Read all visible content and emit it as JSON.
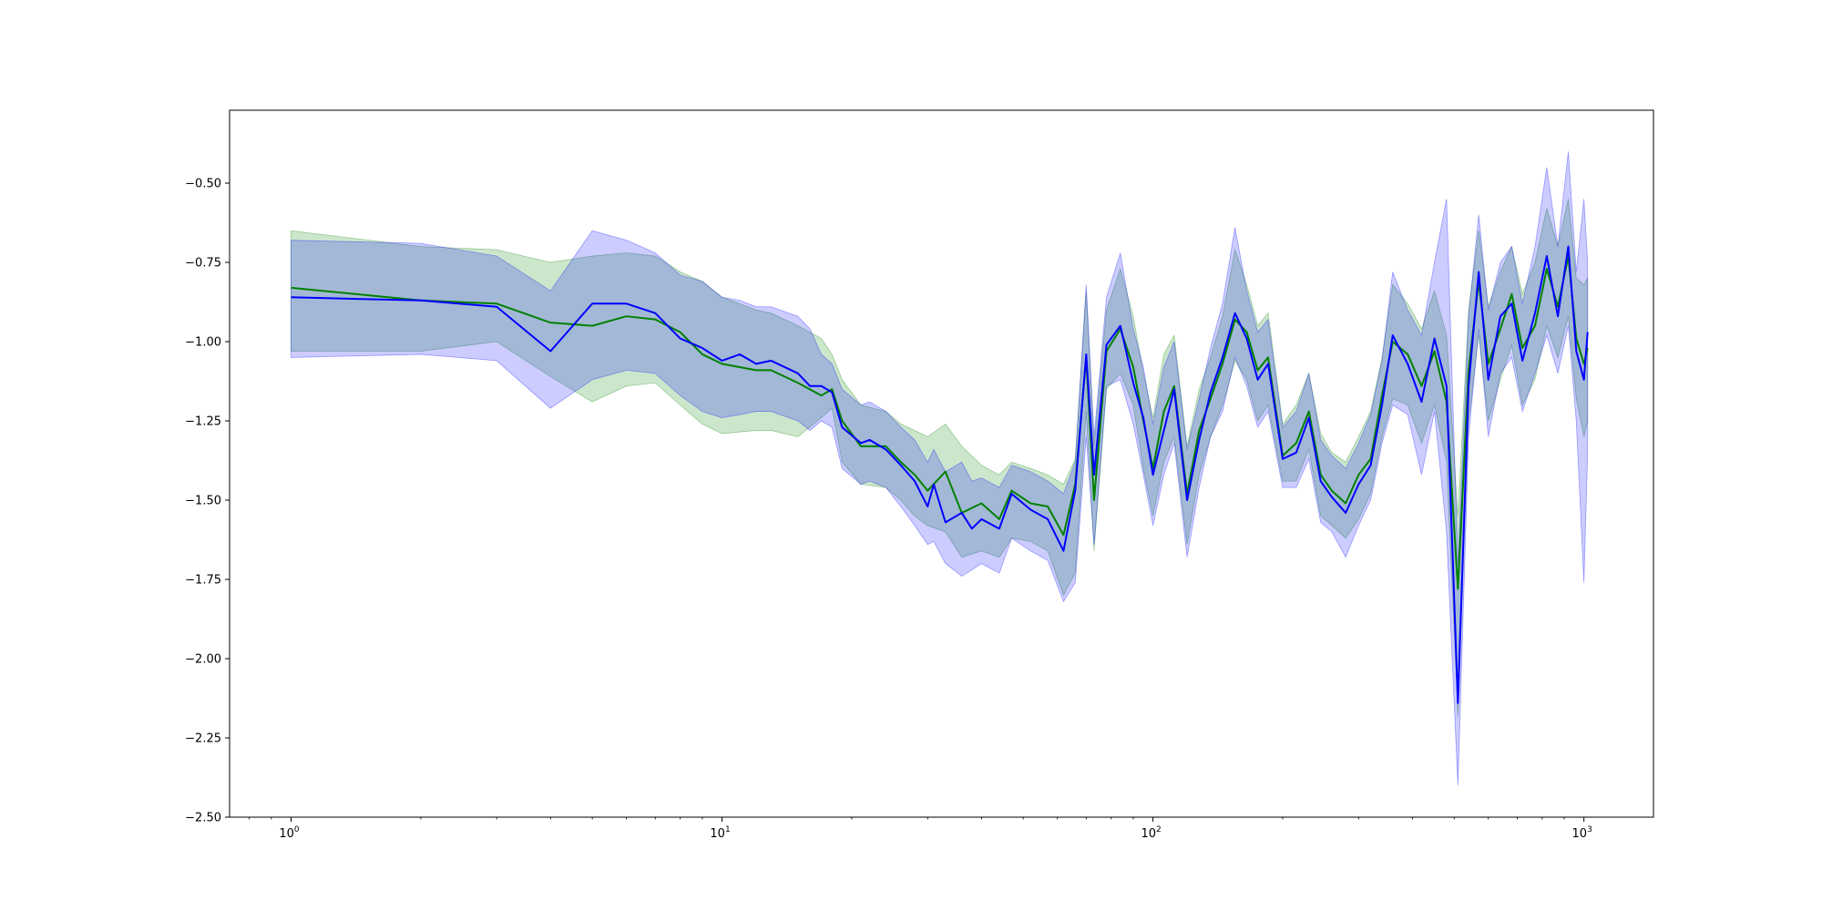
{
  "chart_data": {
    "type": "line",
    "title": "",
    "xlabel": "",
    "ylabel": "",
    "xscale": "log",
    "xlim": [
      0.72,
      1450
    ],
    "ylim": [
      -2.5,
      -0.27
    ],
    "grid": false,
    "x_ticks": [
      {
        "value": 1,
        "label": "10",
        "exp": "0"
      },
      {
        "value": 10,
        "label": "10",
        "exp": "1"
      },
      {
        "value": 100,
        "label": "10",
        "exp": "2"
      },
      {
        "value": 1000,
        "label": "10",
        "exp": "3"
      }
    ],
    "y_ticks": [
      {
        "value": -0.5,
        "label": "−0.50"
      },
      {
        "value": -0.75,
        "label": "−0.75"
      },
      {
        "value": -1.0,
        "label": "−1.00"
      },
      {
        "value": -1.25,
        "label": "−1.25"
      },
      {
        "value": -1.5,
        "label": "−1.50"
      },
      {
        "value": -1.75,
        "label": "−1.75"
      },
      {
        "value": -2.0,
        "label": "−2.00"
      },
      {
        "value": -2.25,
        "label": "−2.25"
      },
      {
        "value": -2.5,
        "label": "−2.50"
      }
    ],
    "series": [
      {
        "color": "#008000",
        "band_color": "#008000",
        "band_opacity": 0.2,
        "points": [
          [
            1,
            -0.83,
            -1.03,
            -0.65
          ],
          [
            2,
            -0.87,
            -1.03,
            -0.7
          ],
          [
            3,
            -0.88,
            -1.0,
            -0.71
          ],
          [
            4,
            -0.94,
            -1.11,
            -0.75
          ],
          [
            5,
            -0.95,
            -1.19,
            -0.73
          ],
          [
            6,
            -0.92,
            -1.14,
            -0.72
          ],
          [
            7,
            -0.93,
            -1.13,
            -0.73
          ],
          [
            8,
            -0.97,
            -1.2,
            -0.78
          ],
          [
            9,
            -1.04,
            -1.26,
            -0.81
          ],
          [
            10,
            -1.07,
            -1.29,
            -0.86
          ],
          [
            12,
            -1.09,
            -1.28,
            -0.9
          ],
          [
            13,
            -1.09,
            -1.28,
            -0.91
          ],
          [
            15,
            -1.13,
            -1.3,
            -0.95
          ],
          [
            17,
            -1.17,
            -1.24,
            -0.99
          ],
          [
            18,
            -1.15,
            -1.21,
            -1.04
          ],
          [
            19,
            -1.25,
            -1.38,
            -1.12
          ],
          [
            21,
            -1.33,
            -1.45,
            -1.2
          ],
          [
            24,
            -1.33,
            -1.46,
            -1.22
          ],
          [
            26,
            -1.38,
            -1.5,
            -1.26
          ],
          [
            28,
            -1.42,
            -1.55,
            -1.28
          ],
          [
            30,
            -1.47,
            -1.58,
            -1.3
          ],
          [
            33,
            -1.41,
            -1.6,
            -1.26
          ],
          [
            36,
            -1.54,
            -1.68,
            -1.33
          ],
          [
            40,
            -1.51,
            -1.66,
            -1.39
          ],
          [
            44,
            -1.56,
            -1.68,
            -1.42
          ],
          [
            47,
            -1.47,
            -1.62,
            -1.38
          ],
          [
            52,
            -1.51,
            -1.63,
            -1.4
          ],
          [
            57,
            -1.52,
            -1.66,
            -1.42
          ],
          [
            62,
            -1.61,
            -1.8,
            -1.45
          ],
          [
            66,
            -1.45,
            -1.73,
            -1.37
          ],
          [
            70,
            -1.05,
            -1.22,
            -0.84
          ],
          [
            73,
            -1.5,
            -1.66,
            -1.33
          ],
          [
            78,
            -1.03,
            -1.15,
            -0.9
          ],
          [
            84,
            -0.96,
            -1.1,
            -0.77
          ],
          [
            90,
            -1.08,
            -1.2,
            -0.92
          ],
          [
            95,
            -1.25,
            -1.4,
            -1.1
          ],
          [
            100,
            -1.4,
            -1.55,
            -1.24
          ],
          [
            106,
            -1.22,
            -1.38,
            -1.04
          ],
          [
            112,
            -1.14,
            -1.3,
            -0.98
          ],
          [
            120,
            -1.48,
            -1.64,
            -1.33
          ],
          [
            128,
            -1.28,
            -1.42,
            -1.15
          ],
          [
            136,
            -1.18,
            -1.3,
            -1.05
          ],
          [
            145,
            -1.07,
            -1.2,
            -0.92
          ],
          [
            155,
            -0.93,
            -1.06,
            -0.71
          ],
          [
            165,
            -0.97,
            -1.12,
            -0.82
          ],
          [
            175,
            -1.09,
            -1.25,
            -0.95
          ],
          [
            185,
            -1.05,
            -1.2,
            -0.91
          ],
          [
            200,
            -1.36,
            -1.44,
            -1.26
          ],
          [
            215,
            -1.32,
            -1.44,
            -1.2
          ],
          [
            230,
            -1.22,
            -1.34,
            -1.1
          ],
          [
            245,
            -1.42,
            -1.55,
            -1.29
          ],
          [
            260,
            -1.47,
            -1.58,
            -1.35
          ],
          [
            280,
            -1.51,
            -1.62,
            -1.38
          ],
          [
            300,
            -1.42,
            -1.56,
            -1.3
          ],
          [
            320,
            -1.37,
            -1.48,
            -1.22
          ],
          [
            340,
            -1.17,
            -1.3,
            -1.05
          ],
          [
            360,
            -1.0,
            -1.18,
            -0.82
          ],
          [
            390,
            -1.04,
            -1.2,
            -0.88
          ],
          [
            420,
            -1.14,
            -1.32,
            -0.96
          ],
          [
            450,
            -1.03,
            -1.2,
            -0.84
          ],
          [
            480,
            -1.19,
            -1.38,
            -0.98
          ],
          [
            510,
            -1.78,
            -2.18,
            -1.55
          ],
          [
            540,
            -1.09,
            -1.25,
            -0.9
          ],
          [
            570,
            -0.81,
            -0.98,
            -0.65
          ],
          [
            600,
            -1.07,
            -1.25,
            -0.89
          ],
          [
            640,
            -0.96,
            -1.12,
            -0.78
          ],
          [
            680,
            -0.85,
            -1.01,
            -0.7
          ],
          [
            720,
            -1.02,
            -1.2,
            -0.85
          ],
          [
            770,
            -0.95,
            -1.12,
            -0.75
          ],
          [
            820,
            -0.77,
            -0.95,
            -0.58
          ],
          [
            870,
            -0.89,
            -1.05,
            -0.7
          ],
          [
            920,
            -0.73,
            -0.92,
            -0.55
          ],
          [
            960,
            -0.99,
            -1.18,
            -0.8
          ],
          [
            1000,
            -1.07,
            -1.3,
            -0.82
          ],
          [
            1020,
            -1.02,
            -1.25,
            -0.8
          ]
        ]
      },
      {
        "color": "#0000ff",
        "band_color": "#0000ff",
        "band_opacity": 0.2,
        "points": [
          [
            1,
            -0.86,
            -1.05,
            -0.68
          ],
          [
            2,
            -0.87,
            -1.04,
            -0.69
          ],
          [
            3,
            -0.89,
            -1.06,
            -0.73
          ],
          [
            4,
            -1.03,
            -1.21,
            -0.84
          ],
          [
            5,
            -0.88,
            -1.12,
            -0.65
          ],
          [
            6,
            -0.88,
            -1.09,
            -0.68
          ],
          [
            7,
            -0.91,
            -1.1,
            -0.72
          ],
          [
            8,
            -0.99,
            -1.17,
            -0.79
          ],
          [
            9,
            -1.02,
            -1.22,
            -0.81
          ],
          [
            10,
            -1.06,
            -1.24,
            -0.86
          ],
          [
            11,
            -1.04,
            -1.23,
            -0.87
          ],
          [
            12,
            -1.07,
            -1.22,
            -0.89
          ],
          [
            13,
            -1.06,
            -1.22,
            -0.89
          ],
          [
            15,
            -1.1,
            -1.25,
            -0.92
          ],
          [
            16,
            -1.14,
            -1.28,
            -0.96
          ],
          [
            17,
            -1.14,
            -1.25,
            -1.04
          ],
          [
            18,
            -1.16,
            -1.27,
            -1.07
          ],
          [
            19,
            -1.27,
            -1.4,
            -1.15
          ],
          [
            21,
            -1.32,
            -1.45,
            -1.2
          ],
          [
            22,
            -1.31,
            -1.44,
            -1.19
          ],
          [
            24,
            -1.34,
            -1.46,
            -1.22
          ],
          [
            26,
            -1.39,
            -1.52,
            -1.27
          ],
          [
            28,
            -1.44,
            -1.58,
            -1.31
          ],
          [
            30,
            -1.52,
            -1.64,
            -1.38
          ],
          [
            31,
            -1.45,
            -1.63,
            -1.34
          ],
          [
            33,
            -1.57,
            -1.7,
            -1.41
          ],
          [
            36,
            -1.54,
            -1.74,
            -1.38
          ],
          [
            38,
            -1.59,
            -1.72,
            -1.44
          ],
          [
            40,
            -1.56,
            -1.7,
            -1.43
          ],
          [
            44,
            -1.59,
            -1.73,
            -1.46
          ],
          [
            47,
            -1.48,
            -1.62,
            -1.39
          ],
          [
            52,
            -1.53,
            -1.66,
            -1.41
          ],
          [
            57,
            -1.56,
            -1.69,
            -1.44
          ],
          [
            62,
            -1.66,
            -1.82,
            -1.48
          ],
          [
            66,
            -1.47,
            -1.76,
            -1.38
          ],
          [
            70,
            -1.04,
            -1.3,
            -0.82
          ],
          [
            73,
            -1.42,
            -1.64,
            -1.3
          ],
          [
            78,
            -1.01,
            -1.14,
            -0.86
          ],
          [
            84,
            -0.95,
            -1.12,
            -0.72
          ],
          [
            90,
            -1.13,
            -1.26,
            -0.96
          ],
          [
            95,
            -1.24,
            -1.42,
            -1.08
          ],
          [
            100,
            -1.42,
            -1.58,
            -1.26
          ],
          [
            106,
            -1.28,
            -1.42,
            -1.08
          ],
          [
            112,
            -1.15,
            -1.32,
            -1.0
          ],
          [
            120,
            -1.5,
            -1.68,
            -1.34
          ],
          [
            128,
            -1.31,
            -1.46,
            -1.18
          ],
          [
            136,
            -1.16,
            -1.3,
            -1.02
          ],
          [
            145,
            -1.05,
            -1.22,
            -0.88
          ],
          [
            155,
            -0.91,
            -1.05,
            -0.64
          ],
          [
            165,
            -0.99,
            -1.14,
            -0.84
          ],
          [
            175,
            -1.12,
            -1.27,
            -0.97
          ],
          [
            185,
            -1.07,
            -1.22,
            -0.93
          ],
          [
            200,
            -1.37,
            -1.46,
            -1.27
          ],
          [
            215,
            -1.35,
            -1.46,
            -1.22
          ],
          [
            230,
            -1.24,
            -1.37,
            -1.1
          ],
          [
            245,
            -1.44,
            -1.57,
            -1.31
          ],
          [
            260,
            -1.49,
            -1.6,
            -1.36
          ],
          [
            280,
            -1.54,
            -1.68,
            -1.4
          ],
          [
            300,
            -1.45,
            -1.58,
            -1.32
          ],
          [
            320,
            -1.39,
            -1.5,
            -1.23
          ],
          [
            340,
            -1.2,
            -1.32,
            -1.06
          ],
          [
            360,
            -0.98,
            -1.2,
            -0.78
          ],
          [
            390,
            -1.07,
            -1.23,
            -0.9
          ],
          [
            420,
            -1.19,
            -1.42,
            -0.98
          ],
          [
            450,
            -0.99,
            -1.22,
            -0.75
          ],
          [
            480,
            -1.14,
            -1.6,
            -0.55
          ],
          [
            510,
            -2.14,
            -2.4,
            -1.7
          ],
          [
            540,
            -1.14,
            -1.3,
            -0.92
          ],
          [
            570,
            -0.78,
            -0.96,
            -0.6
          ],
          [
            600,
            -1.12,
            -1.3,
            -0.9
          ],
          [
            640,
            -0.92,
            -1.1,
            -0.75
          ],
          [
            680,
            -0.88,
            -1.05,
            -0.7
          ],
          [
            720,
            -1.06,
            -1.22,
            -0.88
          ],
          [
            770,
            -0.91,
            -1.1,
            -0.7
          ],
          [
            820,
            -0.73,
            -0.98,
            -0.45
          ],
          [
            870,
            -0.92,
            -1.1,
            -0.7
          ],
          [
            920,
            -0.7,
            -0.95,
            -0.4
          ],
          [
            960,
            -1.03,
            -1.25,
            -0.78
          ],
          [
            1000,
            -1.12,
            -1.76,
            -0.55
          ],
          [
            1020,
            -0.97,
            -1.35,
            -0.75
          ]
        ]
      }
    ]
  }
}
